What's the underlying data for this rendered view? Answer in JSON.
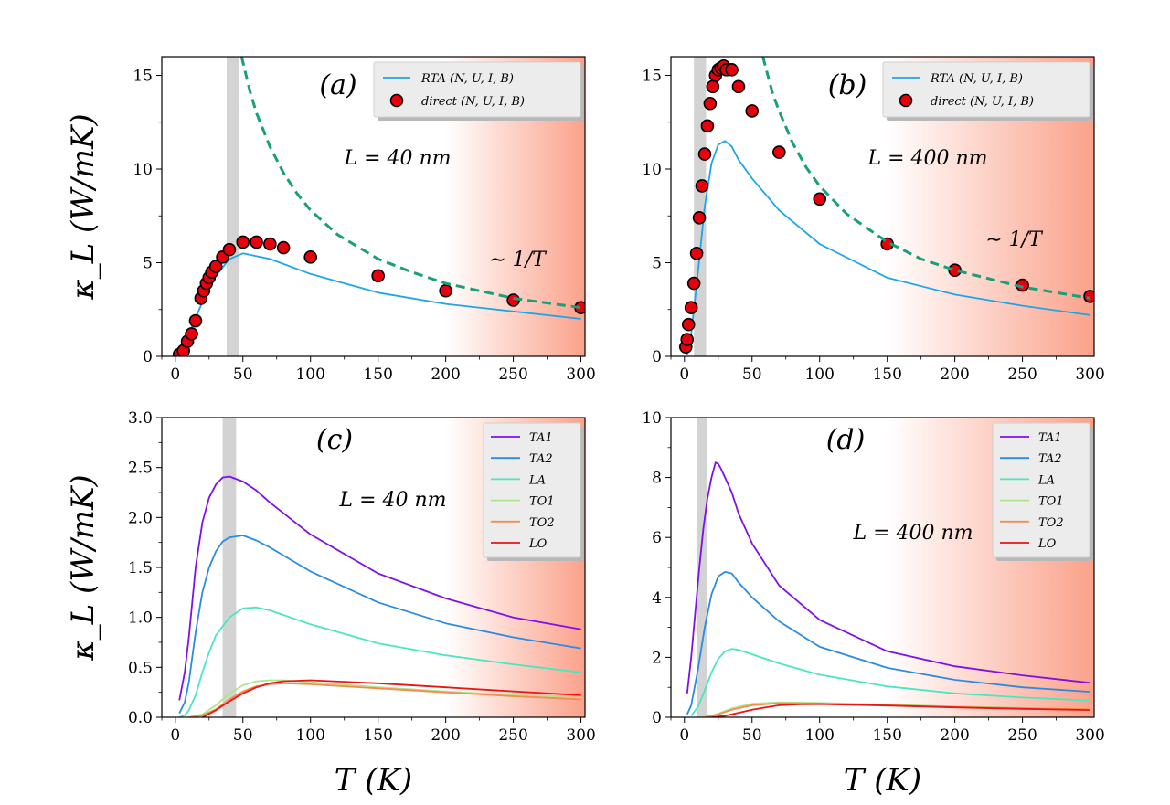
{
  "figure": {
    "ylabel": "κ_L (W/mK)",
    "xlabel": "T (K)",
    "colors": {
      "rta": "#1ca6e8",
      "direct_fill": "#e8000b",
      "direct_edge": "#000000",
      "dashed": "#18a07a",
      "TA1": "#7f10e6",
      "TA2": "#2b8be0",
      "LA": "#49e6c2",
      "TO1": "#aee58a",
      "TO2": "#f58b4c",
      "LO": "#e81616",
      "shade": "#fba18a",
      "vband": "#d3d3d3"
    }
  },
  "chart_data": [
    {
      "panel": "a",
      "type": "line",
      "label": "(a)",
      "annotation": "L = 40 nm",
      "annotation2": "∼ 1/T",
      "xlim": [
        -10,
        303
      ],
      "ylim": [
        0,
        16
      ],
      "xticks": [
        0,
        50,
        100,
        150,
        200,
        250,
        300
      ],
      "yticks": [
        0,
        5,
        10,
        15
      ],
      "ylabel": "κ_L (W/mK)",
      "xlabel": "",
      "shade_from": 200,
      "vband": [
        38,
        47
      ],
      "legend": [
        "RTA (N, U, I, B)",
        "direct (N, U, I, B)"
      ],
      "series": [
        {
          "name": "RTA (N, U, I, B)",
          "kind": "line",
          "color_key": "rta",
          "x": [
            3,
            10,
            20,
            30,
            40,
            50,
            70,
            100,
            150,
            200,
            250,
            300
          ],
          "y": [
            0.05,
            1.2,
            2.9,
            4.3,
            5.2,
            5.5,
            5.2,
            4.4,
            3.4,
            2.8,
            2.4,
            2.0
          ]
        },
        {
          "name": "direct (N, U, I, B)",
          "kind": "scatter",
          "color_key": "direct_fill",
          "x": [
            3,
            6,
            9,
            12,
            15,
            19,
            21,
            23,
            25,
            27,
            30,
            35,
            40,
            50,
            60,
            70,
            80,
            100,
            150,
            200,
            250,
            300
          ],
          "y": [
            0.1,
            0.3,
            0.8,
            1.2,
            1.9,
            3.1,
            3.5,
            3.9,
            4.2,
            4.5,
            4.8,
            5.3,
            5.7,
            6.1,
            6.1,
            6.0,
            5.8,
            5.3,
            4.3,
            3.5,
            3.0,
            2.6
          ]
        },
        {
          "name": "~1/T",
          "kind": "dashed",
          "color_key": "dashed",
          "x": [
            49,
            55,
            60,
            70,
            80,
            90,
            100,
            120,
            150,
            175,
            200,
            250,
            300
          ],
          "y": [
            16,
            14.2,
            13.0,
            11.2,
            9.8,
            8.7,
            7.8,
            6.5,
            5.2,
            4.5,
            3.9,
            3.1,
            2.6
          ]
        }
      ]
    },
    {
      "panel": "b",
      "type": "line",
      "label": "(b)",
      "annotation": "L = 400 nm",
      "annotation2": "∼ 1/T",
      "xlim": [
        -10,
        303
      ],
      "ylim": [
        0,
        16
      ],
      "xticks": [
        0,
        50,
        100,
        150,
        200,
        250,
        300
      ],
      "yticks": [
        0,
        5,
        10,
        15
      ],
      "ylabel": "",
      "xlabel": "",
      "shade_from": 150,
      "vband": [
        7,
        16
      ],
      "legend": [
        "RTA (N, U, I, B)",
        "direct (N, U, I, B)"
      ],
      "series": [
        {
          "name": "RTA (N, U, I, B)",
          "kind": "line",
          "color_key": "rta",
          "x": [
            2,
            5,
            10,
            15,
            20,
            25,
            30,
            35,
            40,
            50,
            70,
            100,
            150,
            200,
            250,
            300
          ],
          "y": [
            0.1,
            1.2,
            4.5,
            8.0,
            10.3,
            11.3,
            11.5,
            11.2,
            10.5,
            9.5,
            7.8,
            6.0,
            4.2,
            3.3,
            2.7,
            2.2
          ]
        },
        {
          "name": "direct (N, U, I, B)",
          "kind": "scatter",
          "color_key": "direct_fill",
          "x": [
            1,
            2,
            3,
            5,
            7,
            9,
            11,
            13,
            15,
            17,
            19,
            21,
            23,
            25,
            27,
            29,
            31,
            35,
            40,
            50,
            70,
            100,
            150,
            200,
            250,
            300
          ],
          "y": [
            0.5,
            0.9,
            1.7,
            2.6,
            3.9,
            5.5,
            7.4,
            9.1,
            10.8,
            12.3,
            13.5,
            14.4,
            15.0,
            15.3,
            15.4,
            15.5,
            15.3,
            15.3,
            14.4,
            13.1,
            10.9,
            8.4,
            6.0,
            4.6,
            3.8,
            3.2
          ]
        },
        {
          "name": "~1/T",
          "kind": "dashed",
          "color_key": "dashed",
          "x": [
            58,
            65,
            70,
            80,
            90,
            100,
            120,
            150,
            175,
            200,
            250,
            300
          ],
          "y": [
            16,
            14.1,
            13.1,
            11.4,
            10.1,
            9.1,
            7.6,
            6.1,
            5.2,
            4.6,
            3.7,
            3.1
          ]
        }
      ]
    },
    {
      "panel": "c",
      "type": "line",
      "label": "(c)",
      "annotation": "L = 40 nm",
      "xlim": [
        -10,
        303
      ],
      "ylim": [
        0,
        3
      ],
      "xticks": [
        0,
        50,
        100,
        150,
        200,
        250,
        300
      ],
      "yticks": [
        0,
        0.5,
        1.0,
        1.5,
        2.0,
        2.5,
        3.0
      ],
      "ytick_labels": [
        "0.0",
        "0.5",
        "1.0",
        "1.5",
        "2.0",
        "2.5",
        "3.0"
      ],
      "ylabel": "κ_L (W/mK)",
      "xlabel": "T (K)",
      "shade_from": 200,
      "vband": [
        35,
        45
      ],
      "legend": [
        "TA1",
        "TA2",
        "LA",
        "TO1",
        "TO2",
        "LO"
      ],
      "series": [
        {
          "name": "TA1",
          "kind": "line",
          "color_key": "TA1",
          "x": [
            3,
            7,
            10,
            15,
            20,
            25,
            30,
            35,
            40,
            50,
            60,
            70,
            100,
            150,
            200,
            250,
            300
          ],
          "y": [
            0.17,
            0.45,
            0.8,
            1.5,
            1.95,
            2.2,
            2.33,
            2.4,
            2.41,
            2.36,
            2.27,
            2.15,
            1.83,
            1.44,
            1.19,
            1.0,
            0.88
          ]
        },
        {
          "name": "TA2",
          "kind": "line",
          "color_key": "TA2",
          "x": [
            3,
            7,
            10,
            15,
            20,
            25,
            30,
            35,
            40,
            50,
            60,
            70,
            100,
            150,
            200,
            250,
            300
          ],
          "y": [
            0.04,
            0.15,
            0.35,
            0.85,
            1.25,
            1.5,
            1.66,
            1.76,
            1.8,
            1.82,
            1.77,
            1.7,
            1.46,
            1.15,
            0.94,
            0.8,
            0.69
          ]
        },
        {
          "name": "LA",
          "kind": "line",
          "color_key": "LA",
          "x": [
            3,
            7,
            10,
            15,
            20,
            25,
            30,
            40,
            50,
            60,
            70,
            100,
            150,
            200,
            250,
            300
          ],
          "y": [
            0.0,
            0.02,
            0.07,
            0.22,
            0.45,
            0.65,
            0.82,
            1.0,
            1.09,
            1.1,
            1.07,
            0.93,
            0.74,
            0.62,
            0.53,
            0.45
          ]
        },
        {
          "name": "TO1",
          "kind": "line",
          "color_key": "TO1",
          "x": [
            10,
            20,
            30,
            40,
            50,
            60,
            70,
            80,
            100,
            150,
            200,
            250,
            300
          ],
          "y": [
            0.0,
            0.03,
            0.12,
            0.24,
            0.32,
            0.36,
            0.37,
            0.37,
            0.35,
            0.3,
            0.26,
            0.22,
            0.19
          ]
        },
        {
          "name": "TO2",
          "kind": "line",
          "color_key": "TO2",
          "x": [
            10,
            20,
            30,
            40,
            50,
            60,
            70,
            80,
            100,
            150,
            200,
            250,
            300
          ],
          "y": [
            0.0,
            0.02,
            0.08,
            0.18,
            0.26,
            0.31,
            0.33,
            0.34,
            0.33,
            0.29,
            0.25,
            0.21,
            0.18
          ]
        },
        {
          "name": "LO",
          "kind": "line",
          "color_key": "LO",
          "x": [
            20,
            30,
            40,
            50,
            60,
            70,
            80,
            100,
            150,
            200,
            250,
            300
          ],
          "y": [
            0.0,
            0.07,
            0.16,
            0.24,
            0.3,
            0.34,
            0.36,
            0.37,
            0.34,
            0.3,
            0.26,
            0.22
          ]
        }
      ]
    },
    {
      "panel": "d",
      "type": "line",
      "label": "(d)",
      "annotation": "L = 400 nm",
      "xlim": [
        -10,
        303
      ],
      "ylim": [
        0,
        10
      ],
      "xticks": [
        0,
        50,
        100,
        150,
        200,
        250,
        300
      ],
      "yticks": [
        0,
        2,
        4,
        6,
        8,
        10
      ],
      "ylabel": "",
      "xlabel": "T (K)",
      "shade_from": 150,
      "vband": [
        9,
        17
      ],
      "legend": [
        "TA1",
        "TA2",
        "LA",
        "TO1",
        "TO2",
        "LO"
      ],
      "series": [
        {
          "name": "TA1",
          "kind": "line",
          "color_key": "TA1",
          "x": [
            2,
            5,
            8,
            11,
            14,
            17,
            20,
            23,
            25,
            27,
            30,
            35,
            40,
            50,
            70,
            100,
            150,
            200,
            250,
            300
          ],
          "y": [
            0.8,
            2.0,
            3.5,
            5.0,
            6.3,
            7.3,
            8.0,
            8.5,
            8.45,
            8.3,
            8.0,
            7.5,
            6.8,
            5.8,
            4.4,
            3.25,
            2.2,
            1.7,
            1.4,
            1.15
          ]
        },
        {
          "name": "TA2",
          "kind": "line",
          "color_key": "TA2",
          "x": [
            2,
            5,
            10,
            15,
            20,
            25,
            30,
            35,
            40,
            50,
            70,
            100,
            150,
            200,
            250,
            300
          ],
          "y": [
            0.1,
            0.4,
            1.6,
            3.0,
            4.1,
            4.7,
            4.85,
            4.8,
            4.5,
            4.0,
            3.2,
            2.35,
            1.65,
            1.25,
            1.0,
            0.85
          ]
        },
        {
          "name": "LA",
          "kind": "line",
          "color_key": "LA",
          "x": [
            5,
            10,
            15,
            20,
            25,
            30,
            35,
            40,
            50,
            70,
            100,
            150,
            200,
            250,
            300
          ],
          "y": [
            0.05,
            0.35,
            0.9,
            1.5,
            1.95,
            2.2,
            2.28,
            2.25,
            2.1,
            1.8,
            1.42,
            1.03,
            0.8,
            0.66,
            0.56
          ]
        },
        {
          "name": "TO1",
          "kind": "line",
          "color_key": "TO1",
          "x": [
            15,
            25,
            35,
            50,
            70,
            100,
            150,
            200,
            250,
            300
          ],
          "y": [
            0.0,
            0.12,
            0.3,
            0.45,
            0.5,
            0.48,
            0.42,
            0.36,
            0.31,
            0.28
          ]
        },
        {
          "name": "TO2",
          "kind": "line",
          "color_key": "TO2",
          "x": [
            15,
            25,
            35,
            50,
            70,
            100,
            150,
            200,
            250,
            300
          ],
          "y": [
            0.0,
            0.1,
            0.25,
            0.4,
            0.47,
            0.46,
            0.4,
            0.34,
            0.3,
            0.27
          ]
        },
        {
          "name": "LO",
          "kind": "line",
          "color_key": "LO",
          "x": [
            20,
            30,
            40,
            50,
            60,
            70,
            85,
            100,
            150,
            200,
            250,
            300
          ],
          "y": [
            0.0,
            0.05,
            0.15,
            0.25,
            0.33,
            0.4,
            0.43,
            0.44,
            0.39,
            0.33,
            0.28,
            0.24
          ]
        }
      ]
    }
  ]
}
